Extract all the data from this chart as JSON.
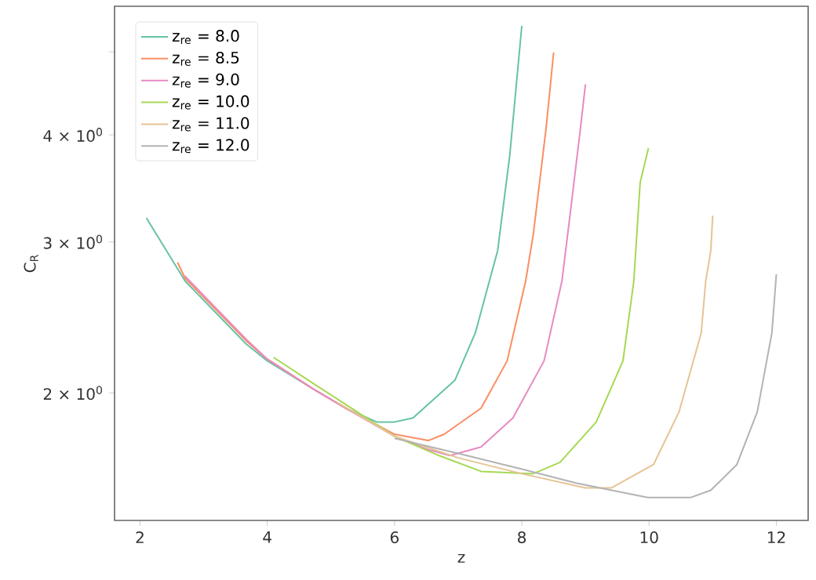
{
  "chart_data": {
    "type": "line",
    "xlabel": "z",
    "ylabel": "C$_{R}$",
    "log": "y",
    "grid": false,
    "legend": "top left",
    "marker": "none",
    "line_style": "solid",
    "xlim": [
      1.6,
      12.5
    ],
    "xticks": [
      2,
      4,
      6,
      8,
      10,
      12
    ],
    "ylim": [
      1.42,
      5.65
    ],
    "yticks": [
      {
        "value": 2,
        "label": "2 × 10$^{0}$"
      },
      {
        "value": 3,
        "label": "3 × 10$^{0}$"
      },
      {
        "value": 4,
        "label": "4 × 10$^{0}$"
      },
      {
        "value": 5,
        "label": null
      }
    ],
    "series": [
      {
        "name": "z$_{re}$ = 8.0",
        "color": "#66c2a5",
        "x": [
          2.1,
          2.71,
          3.67,
          4.0,
          4.73,
          5.23,
          5.72,
          6.0,
          6.29,
          6.95,
          7.27,
          7.49,
          7.62,
          7.81,
          8.0
        ],
        "values": [
          3.2,
          2.7,
          2.28,
          2.18,
          2.02,
          1.92,
          1.85,
          1.85,
          1.87,
          2.07,
          2.35,
          2.7,
          2.93,
          3.78,
          5.36
        ]
      },
      {
        "name": "z$_{re}$ = 8.5",
        "color": "#fc8d62",
        "x": [
          2.59,
          2.71,
          3.67,
          4.0,
          4.73,
          5.23,
          6.0,
          6.53,
          6.78,
          7.36,
          7.77,
          8.06,
          8.18,
          8.38,
          8.5
        ],
        "values": [
          2.84,
          2.72,
          2.3,
          2.19,
          2.02,
          1.92,
          1.79,
          1.76,
          1.79,
          1.92,
          2.18,
          2.7,
          3.06,
          4.06,
          4.99
        ]
      },
      {
        "name": "z$_{re}$ = 9.0",
        "color": "#e78ac3",
        "x": [
          2.7,
          3.67,
          4.0,
          4.73,
          5.23,
          6.0,
          6.5,
          6.87,
          7.36,
          7.86,
          8.35,
          8.63,
          8.75,
          8.92,
          9.0
        ],
        "values": [
          2.74,
          2.31,
          2.19,
          2.02,
          1.92,
          1.78,
          1.72,
          1.69,
          1.73,
          1.87,
          2.18,
          2.7,
          3.19,
          4.06,
          4.58
        ]
      },
      {
        "name": "z$_{re}$ = 10.0",
        "color": "#a6d854",
        "x": [
          4.1,
          4.73,
          5.23,
          6.0,
          6.7,
          7.36,
          8.18,
          8.6,
          9.17,
          9.59,
          9.76,
          9.86,
          9.99
        ],
        "values": [
          2.2,
          2.05,
          1.94,
          1.78,
          1.69,
          1.62,
          1.61,
          1.66,
          1.85,
          2.18,
          2.7,
          3.52,
          3.86
        ]
      },
      {
        "name": "z$_{re}$ = 11.0",
        "color": "#e5c494",
        "x": [
          5.1,
          6.0,
          7.0,
          8.0,
          9.0,
          9.41,
          10.07,
          10.47,
          10.82,
          10.89,
          10.97,
          11.0
        ],
        "values": [
          1.95,
          1.78,
          1.68,
          1.61,
          1.55,
          1.55,
          1.65,
          1.9,
          2.35,
          2.7,
          2.93,
          3.22
        ]
      },
      {
        "name": "z$_{re}$ = 12.0",
        "color": "#b3b3b3",
        "x": [
          6.0,
          7.0,
          8.0,
          8.85,
          9.41,
          9.98,
          10.65,
          10.97,
          11.38,
          11.7,
          11.93,
          12.0
        ],
        "values": [
          1.77,
          1.7,
          1.63,
          1.57,
          1.54,
          1.51,
          1.51,
          1.54,
          1.65,
          1.9,
          2.35,
          2.75
        ]
      }
    ]
  }
}
